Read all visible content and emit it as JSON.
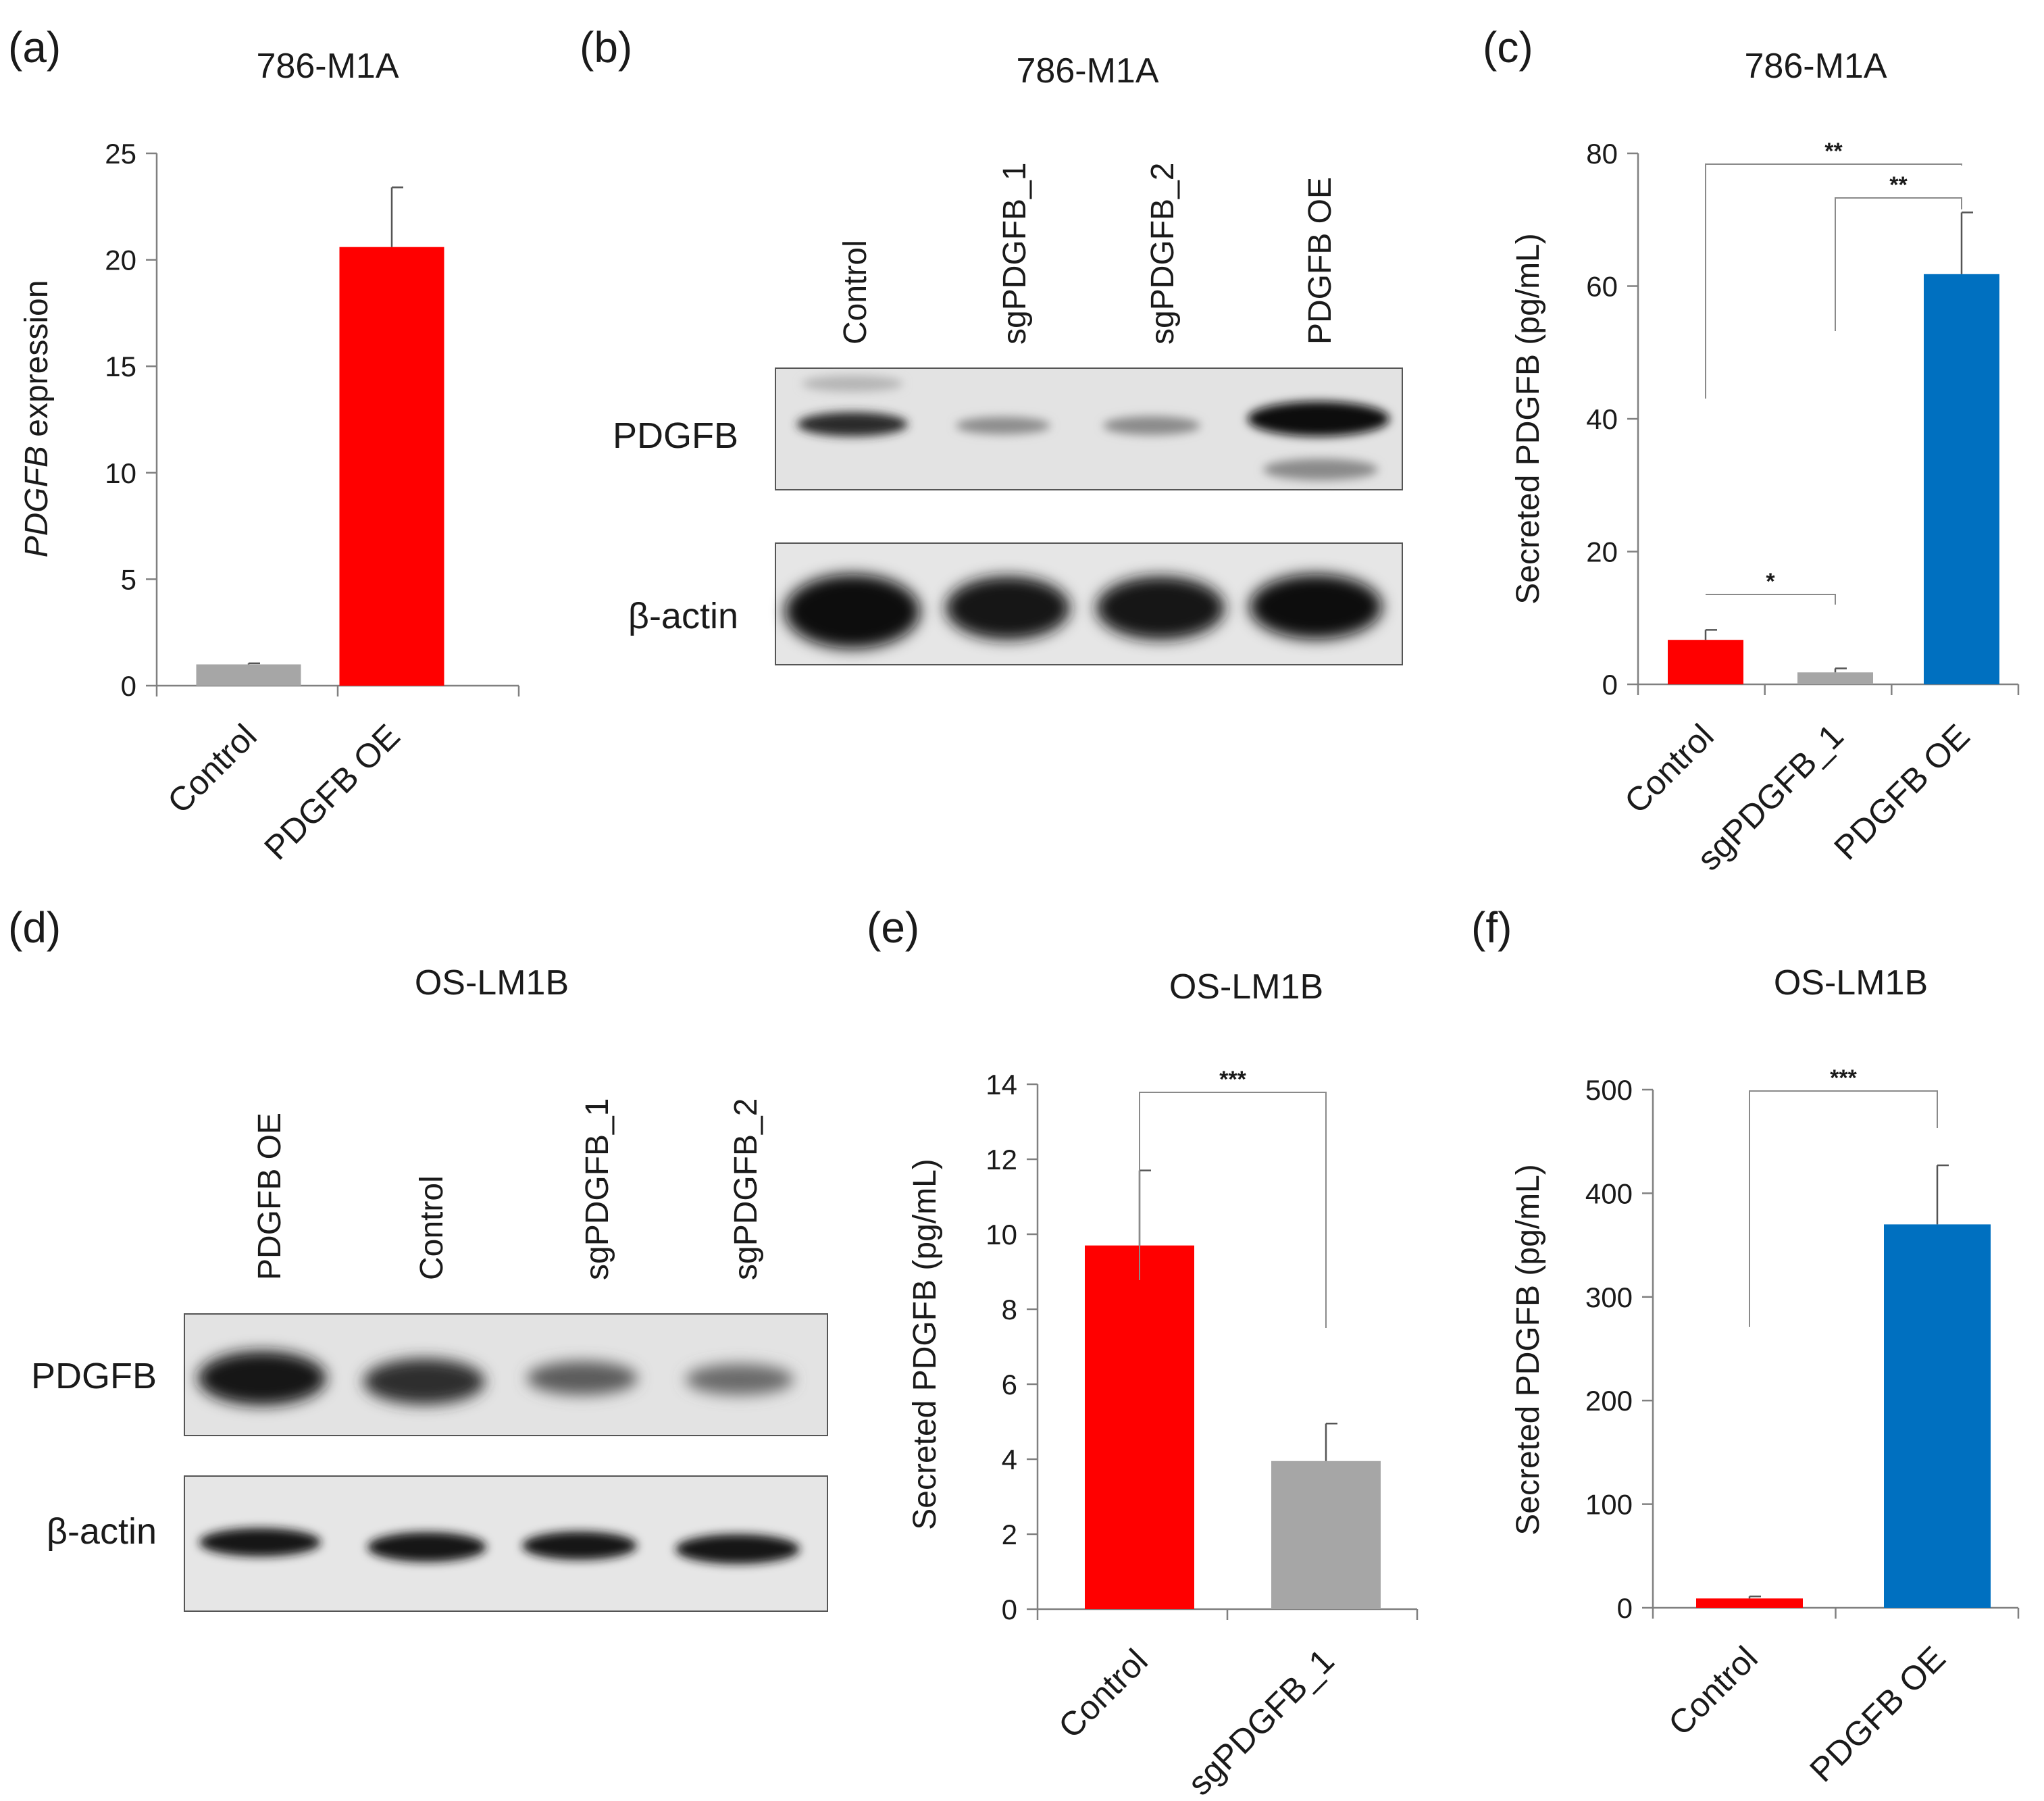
{
  "colors": {
    "red": "#ff0000",
    "gray": "#a6a6a6",
    "blue": "#0070c0"
  },
  "panels": {
    "a": {
      "label": "(a)",
      "title": "786-M1A"
    },
    "b": {
      "label": "(b)",
      "title": "786-M1A",
      "lanes": [
        "Control",
        "sgPDGFB_1",
        "sgPDGFB_2",
        "PDGFB OE"
      ],
      "rows": [
        "PDGFB",
        "β-actin"
      ]
    },
    "c": {
      "label": "(c)",
      "title": "786-M1A"
    },
    "d": {
      "label": "(d)",
      "title": "OS-LM1B",
      "lanes": [
        "PDGFB OE",
        "Control",
        "sgPDGFB_1",
        "sgPDGFB_2"
      ],
      "rows": [
        "PDGFB",
        "β-actin"
      ]
    },
    "e": {
      "label": "(e)",
      "title": "OS-LM1B"
    },
    "f": {
      "label": "(f)",
      "title": "OS-LM1B"
    }
  },
  "chart_data": [
    {
      "id": "a",
      "type": "bar",
      "title": "786-M1A",
      "ylabel_italic": "PDGFB",
      "ylabel_rest": " expression",
      "categories": [
        "Control",
        "PDGFB OE"
      ],
      "values": [
        1.0,
        20.6
      ],
      "errors": [
        0.05,
        2.8
      ],
      "colors": [
        "#a6a6a6",
        "#ff0000"
      ],
      "ylim": [
        0,
        25
      ],
      "yticks": [
        0,
        5,
        10,
        15,
        20,
        25
      ],
      "significance": []
    },
    {
      "id": "c",
      "type": "bar",
      "title": "786-M1A",
      "ylabel": "Secreted PDGFB (pg/mL)",
      "categories": [
        "Control",
        "sgPDGFB_1",
        "PDGFB OE"
      ],
      "values": [
        6.7,
        1.8,
        61.8
      ],
      "errors": [
        1.5,
        0.6,
        9.3
      ],
      "colors": [
        "#ff0000",
        "#a6a6a6",
        "#0070c0"
      ],
      "ylim": [
        0,
        80
      ],
      "yticks": [
        0,
        20,
        40,
        60,
        80
      ],
      "significance": [
        {
          "from": 0,
          "to": 1,
          "label": "*"
        },
        {
          "from": 1,
          "to": 2,
          "label": "**"
        },
        {
          "from": 0,
          "to": 2,
          "label": "**"
        }
      ]
    },
    {
      "id": "e",
      "type": "bar",
      "title": "OS-LM1B",
      "ylabel": "Secreted PDGFB (pg/mL)",
      "categories": [
        "Control",
        "sgPDGFB_1"
      ],
      "values": [
        9.7,
        3.95
      ],
      "errors": [
        2.0,
        1.0
      ],
      "colors": [
        "#ff0000",
        "#a6a6a6"
      ],
      "ylim": [
        0,
        14
      ],
      "yticks": [
        0,
        2,
        4,
        6,
        8,
        10,
        12,
        14
      ],
      "significance": [
        {
          "from": 0,
          "to": 1,
          "label": "***"
        }
      ]
    },
    {
      "id": "f",
      "type": "bar",
      "title": "OS-LM1B",
      "ylabel": "Secreted PDGFB (pg/mL)",
      "categories": [
        "Control",
        "PDGFB OE"
      ],
      "values": [
        9,
        370
      ],
      "errors": [
        2,
        57
      ],
      "colors": [
        "#ff0000",
        "#0070c0"
      ],
      "ylim": [
        0,
        500
      ],
      "yticks": [
        0,
        100,
        200,
        300,
        400,
        500
      ],
      "significance": [
        {
          "from": 0,
          "to": 1,
          "label": "***"
        }
      ]
    }
  ]
}
